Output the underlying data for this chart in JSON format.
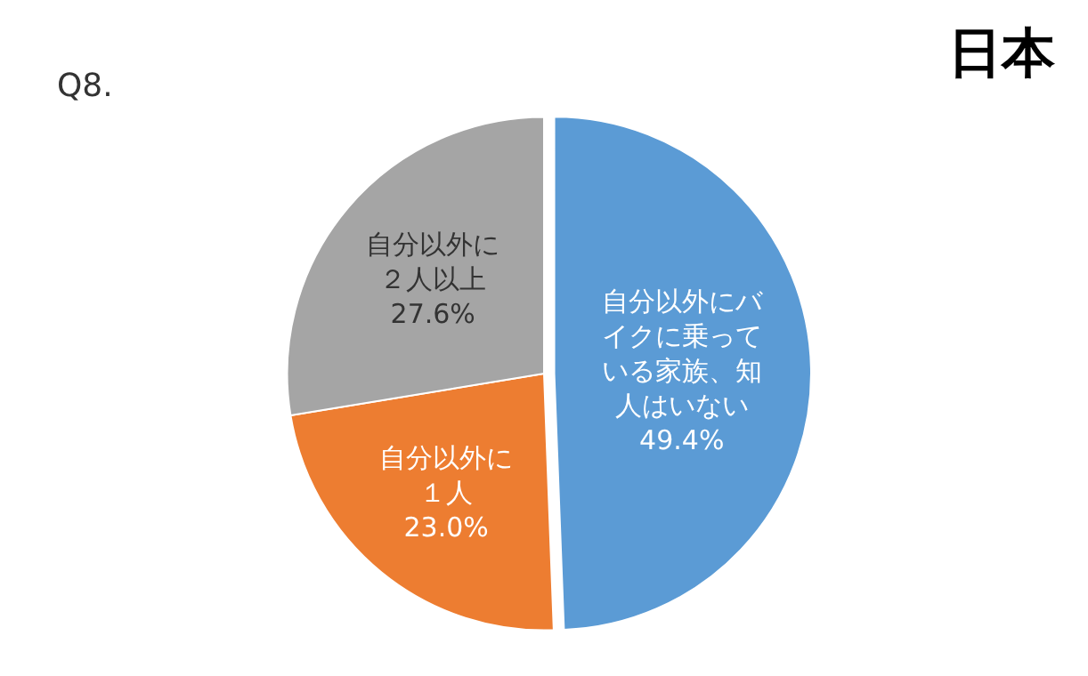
{
  "chart_data": {
    "type": "pie",
    "title": "日本",
    "annotations": [
      "Q8."
    ],
    "categories": [
      "自分以外にバイクに乗っている家族、知人はいない",
      "自分以外に１人",
      "自分以外に２人以上"
    ],
    "values": [
      49.4,
      23.0,
      27.6
    ],
    "value_labels": [
      "49.4%",
      "23.0%",
      "27.6%"
    ],
    "colors": [
      "#5b9bd5",
      "#ed7d31",
      "#a5a5a5"
    ],
    "legend": false
  }
}
